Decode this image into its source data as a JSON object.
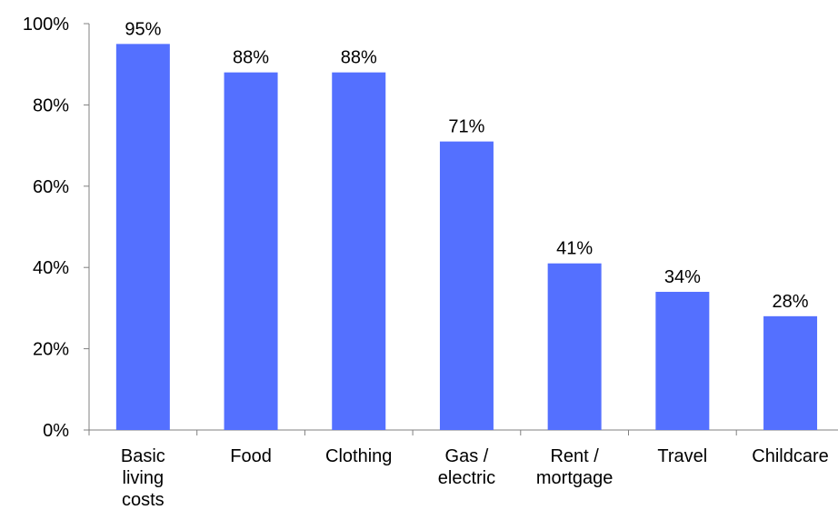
{
  "chart_data": {
    "type": "bar",
    "categories": [
      [
        "Basic",
        "living",
        "costs"
      ],
      [
        "Food"
      ],
      [
        "Clothing"
      ],
      [
        "Gas /",
        "electric"
      ],
      [
        "Rent /",
        "mortgage"
      ],
      [
        "Travel"
      ],
      [
        "Childcare"
      ]
    ],
    "values": [
      95,
      88,
      88,
      71,
      41,
      34,
      28
    ],
    "data_labels": [
      "95%",
      "88%",
      "88%",
      "71%",
      "41%",
      "34%",
      "28%"
    ],
    "y_ticks": [
      "0%",
      "20%",
      "40%",
      "60%",
      "80%",
      "100%"
    ],
    "ylim": [
      0,
      100
    ],
    "bar_color": "#5470ff",
    "grid": false,
    "legend": false
  }
}
